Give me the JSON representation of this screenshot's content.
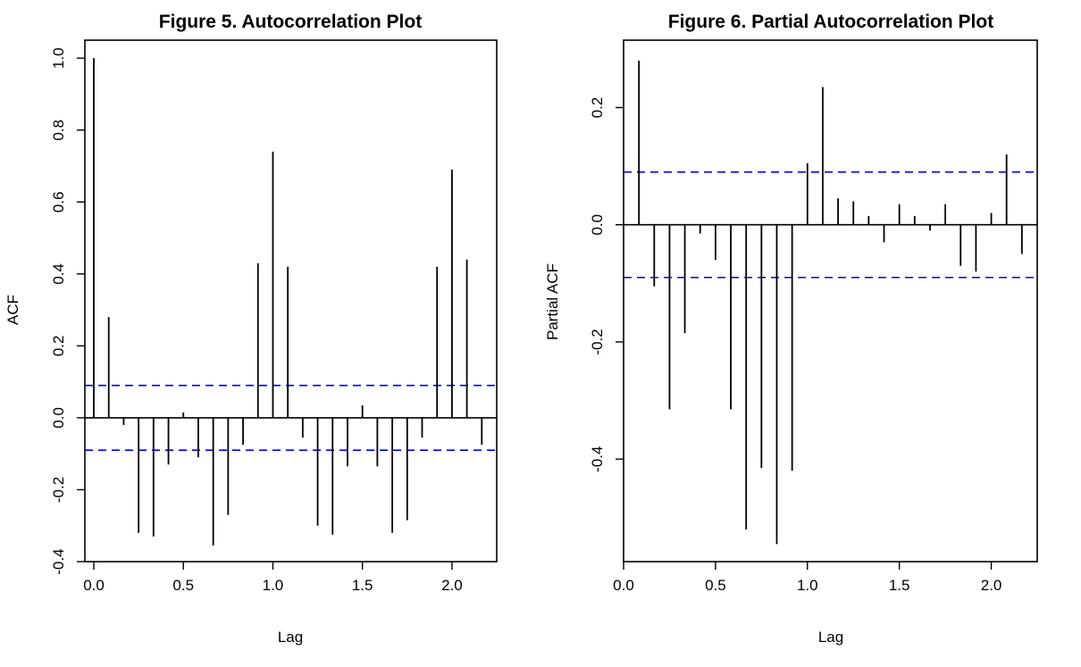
{
  "chart_data": [
    {
      "type": "bar",
      "title": "Figure 5. Autocorrelation Plot",
      "xlabel": "Lag",
      "ylabel": "ACF",
      "xlim": [
        -0.05,
        2.25
      ],
      "ylim": [
        -0.4,
        1.05
      ],
      "xticks": [
        "0.0",
        "0.5",
        "1.0",
        "1.5",
        "2.0"
      ],
      "yticks": [
        "-0.4",
        "-0.2",
        "0.0",
        "0.2",
        "0.4",
        "0.6",
        "0.8",
        "1.0"
      ],
      "confidence_bound": 0.09,
      "series": [
        {
          "x": [
            0.0,
            0.0833,
            0.1667,
            0.25,
            0.3333,
            0.4167,
            0.5,
            0.5833,
            0.6667,
            0.75,
            0.8333,
            0.9167,
            1.0,
            1.0833,
            1.1667,
            1.25,
            1.3333,
            1.4167,
            1.5,
            1.5833,
            1.6667,
            1.75,
            1.8333,
            1.9167,
            2.0,
            2.0833,
            2.1667
          ],
          "values": [
            1.0,
            0.28,
            -0.02,
            -0.32,
            -0.33,
            -0.13,
            0.015,
            -0.11,
            -0.355,
            -0.27,
            -0.075,
            0.43,
            0.74,
            0.42,
            -0.055,
            -0.3,
            -0.325,
            -0.135,
            0.035,
            -0.135,
            -0.32,
            -0.285,
            -0.055,
            0.42,
            0.69,
            0.44,
            -0.075
          ]
        }
      ]
    },
    {
      "type": "bar",
      "title": "Figure 6. Partial Autocorrelation Plot",
      "xlabel": "Lag",
      "ylabel": "Partial ACF",
      "xlim": [
        0.0,
        2.25
      ],
      "ylim": [
        -0.575,
        0.315
      ],
      "xticks": [
        "0.0",
        "0.5",
        "1.0",
        "1.5",
        "2.0"
      ],
      "yticks": [
        "-0.4",
        "-0.2",
        "0.0",
        "0.2"
      ],
      "confidence_bound": 0.09,
      "series": [
        {
          "x": [
            0.0833,
            0.1667,
            0.25,
            0.3333,
            0.4167,
            0.5,
            0.5833,
            0.6667,
            0.75,
            0.8333,
            0.9167,
            1.0,
            1.0833,
            1.1667,
            1.25,
            1.3333,
            1.4167,
            1.5,
            1.5833,
            1.6667,
            1.75,
            1.8333,
            1.9167,
            2.0,
            2.0833,
            2.1667
          ],
          "values": [
            0.28,
            -0.105,
            -0.315,
            -0.185,
            -0.015,
            -0.06,
            -0.315,
            -0.52,
            -0.415,
            -0.545,
            -0.42,
            0.105,
            0.235,
            0.045,
            0.04,
            0.015,
            -0.03,
            0.035,
            0.015,
            -0.01,
            0.035,
            -0.07,
            -0.08,
            0.02,
            0.12,
            -0.05
          ]
        }
      ]
    }
  ]
}
